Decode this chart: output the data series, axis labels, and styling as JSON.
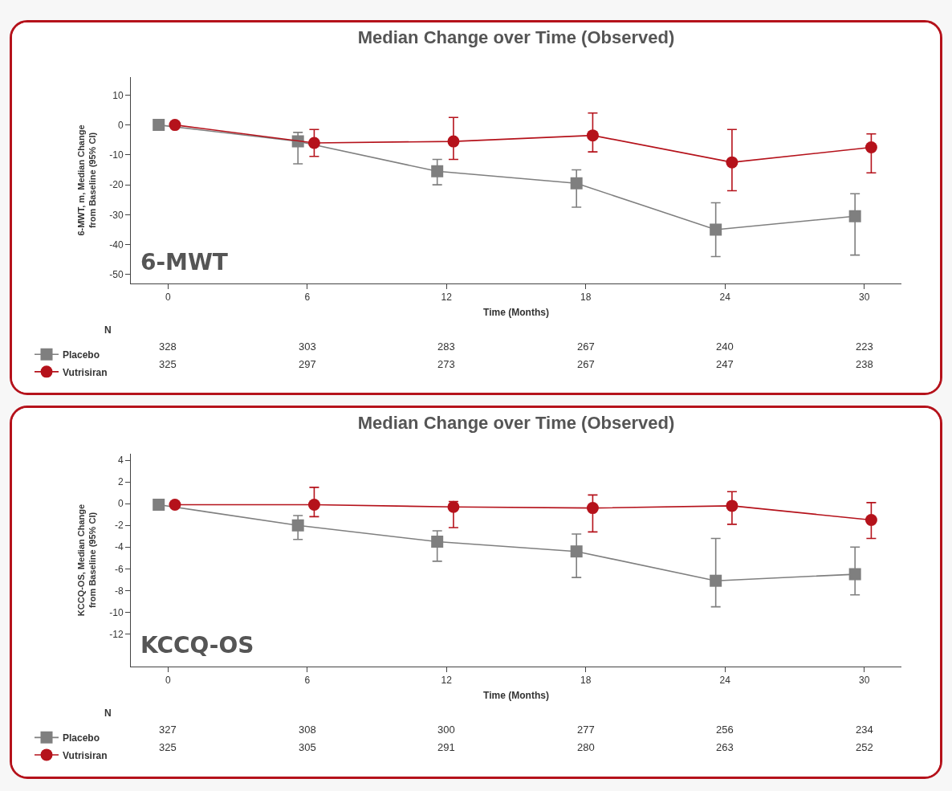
{
  "chart_data": [
    {
      "type": "line",
      "title": "Median Change over Time (Observed)",
      "xlabel": "Time (Months)",
      "ylabel": "6-MWT, m, Median Change\nfrom Baseline (95% CI)",
      "xlim": [
        -1.6,
        31.6
      ],
      "xticks": [
        0,
        6,
        12,
        18,
        24,
        30
      ],
      "ylim": [
        -53,
        16
      ],
      "yticks": [
        10,
        0,
        -10,
        -20,
        -30,
        -40,
        -50
      ],
      "grid": false,
      "legend": "bottom left",
      "series": [
        {
          "name": "Placebo",
          "color": "#7f7f7f",
          "marker": "square",
          "x": [
            -0.4,
            5.6,
            11.6,
            17.6,
            23.6,
            29.6
          ],
          "values": [
            0,
            -5.5,
            -15.5,
            -19.5,
            -35,
            -30.5
          ],
          "errors": [
            null,
            [
              -13,
              -2.5
            ],
            [
              -20,
              -11.5
            ],
            [
              -27.5,
              -15
            ],
            [
              -44,
              -26
            ],
            [
              -43.5,
              -23
            ]
          ]
        },
        {
          "name": "Vutrisiran",
          "color": "#b5121b",
          "marker": "circle",
          "x": [
            0.3,
            6.3,
            12.3,
            18.3,
            24.3,
            30.3
          ],
          "values": [
            0,
            -6,
            -5.5,
            -3.5,
            -12.5,
            -7.5
          ],
          "errors": [
            null,
            [
              -10.5,
              -1.5
            ],
            [
              -11.5,
              2.5
            ],
            [
              -9,
              4
            ],
            [
              -22,
              -1.5
            ],
            [
              -16,
              -3
            ]
          ]
        }
      ],
      "annotations": [
        "6-MWT",
        "N",
        "328",
        "303",
        "283",
        "267",
        "240",
        "223",
        "325",
        "297",
        "273",
        "267",
        "247",
        "238"
      ]
    },
    {
      "type": "line",
      "title": "Median Change over Time (Observed)",
      "xlabel": "Time (Months)",
      "ylabel": "KCCQ-OS, Median Change\nfrom Baseline (95% CI)",
      "xlim": [
        -1.6,
        31.6
      ],
      "xticks": [
        0,
        6,
        12,
        18,
        24,
        30
      ],
      "ylim": [
        -15,
        4.6
      ],
      "yticks": [
        4,
        2,
        0,
        -2,
        -4,
        -6,
        -8,
        -10,
        -12
      ],
      "grid": false,
      "legend": "bottom left",
      "series": [
        {
          "name": "Placebo",
          "color": "#7f7f7f",
          "marker": "square",
          "x": [
            -0.4,
            5.6,
            11.6,
            17.6,
            23.6,
            29.6
          ],
          "values": [
            -0.1,
            -2,
            -3.5,
            -4.4,
            -7.1,
            -6.5
          ],
          "errors": [
            null,
            [
              -3.3,
              -1.1
            ],
            [
              -5.3,
              -2.5
            ],
            [
              -6.8,
              -2.8
            ],
            [
              -9.5,
              -3.2
            ],
            [
              -8.4,
              -4
            ]
          ]
        },
        {
          "name": "Vutrisiran",
          "color": "#b5121b",
          "marker": "circle",
          "x": [
            0.3,
            6.3,
            12.3,
            18.3,
            24.3,
            30.3
          ],
          "values": [
            -0.1,
            -0.1,
            -0.3,
            -0.4,
            -0.2,
            -1.5
          ],
          "errors": [
            null,
            [
              -1.2,
              1.5
            ],
            [
              -2.2,
              0.2
            ],
            [
              -2.6,
              0.8
            ],
            [
              -1.9,
              1.1
            ],
            [
              -3.2,
              0.1
            ]
          ]
        }
      ],
      "annotations": [
        "KCCQ-OS",
        "N",
        "327",
        "308",
        "300",
        "277",
        "256",
        "234",
        "325",
        "305",
        "291",
        "280",
        "263",
        "252"
      ]
    }
  ]
}
